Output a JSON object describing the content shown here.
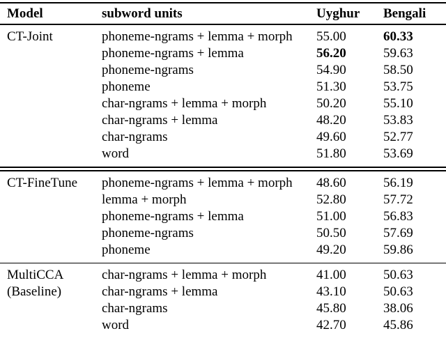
{
  "table": {
    "headers": {
      "model": "Model",
      "subword": "subword units",
      "uyghur": "Uyghur",
      "bengali": "Bengali"
    },
    "groups": [
      {
        "divider_above": "none",
        "model_lines": [
          "CT-Joint"
        ],
        "rows": [
          {
            "subword": "phoneme-ngrams + lemma + morph",
            "uyghur": "55.00",
            "bengali": "60.33",
            "bold": "bengali"
          },
          {
            "subword": "phoneme-ngrams + lemma",
            "uyghur": "56.20",
            "bengali": "59.63",
            "bold": "uyghur"
          },
          {
            "subword": "phoneme-ngrams",
            "uyghur": "54.90",
            "bengali": "58.50",
            "bold": null
          },
          {
            "subword": "phoneme",
            "uyghur": "51.30",
            "bengali": "53.75",
            "bold": null
          },
          {
            "subword": "char-ngrams + lemma + morph",
            "uyghur": "50.20",
            "bengali": "55.10",
            "bold": null
          },
          {
            "subword": "char-ngrams + lemma",
            "uyghur": "48.20",
            "bengali": "53.83",
            "bold": null
          },
          {
            "subword": "char-ngrams",
            "uyghur": "49.60",
            "bengali": "52.77",
            "bold": null
          },
          {
            "subword": "word",
            "uyghur": "51.80",
            "bengali": "53.69",
            "bold": null
          }
        ]
      },
      {
        "divider_above": "double",
        "model_lines": [
          "CT-FineTune"
        ],
        "rows": [
          {
            "subword": "phoneme-ngrams + lemma + morph",
            "uyghur": "48.60",
            "bengali": "56.19",
            "bold": null
          },
          {
            "subword": "lemma + morph",
            "uyghur": "52.80",
            "bengali": "57.72",
            "bold": null
          },
          {
            "subword": "phoneme-ngrams + lemma",
            "uyghur": "51.00",
            "bengali": "56.83",
            "bold": null
          },
          {
            "subword": "phoneme-ngrams",
            "uyghur": "50.50",
            "bengali": "57.69",
            "bold": null
          },
          {
            "subword": "phoneme",
            "uyghur": "49.20",
            "bengali": "59.86",
            "bold": null
          }
        ]
      },
      {
        "divider_above": "single",
        "model_lines": [
          "MultiCCA",
          "(Baseline)"
        ],
        "rows": [
          {
            "subword": "char-ngrams + lemma + morph",
            "uyghur": "41.00",
            "bengali": "50.63",
            "bold": null
          },
          {
            "subword": "char-ngrams + lemma",
            "uyghur": "43.10",
            "bengali": "50.63",
            "bold": null
          },
          {
            "subword": "char-ngrams",
            "uyghur": "45.80",
            "bengali": "38.06",
            "bold": null
          },
          {
            "subword": "word",
            "uyghur": "42.70",
            "bengali": "45.86",
            "bold": null
          }
        ]
      }
    ]
  }
}
